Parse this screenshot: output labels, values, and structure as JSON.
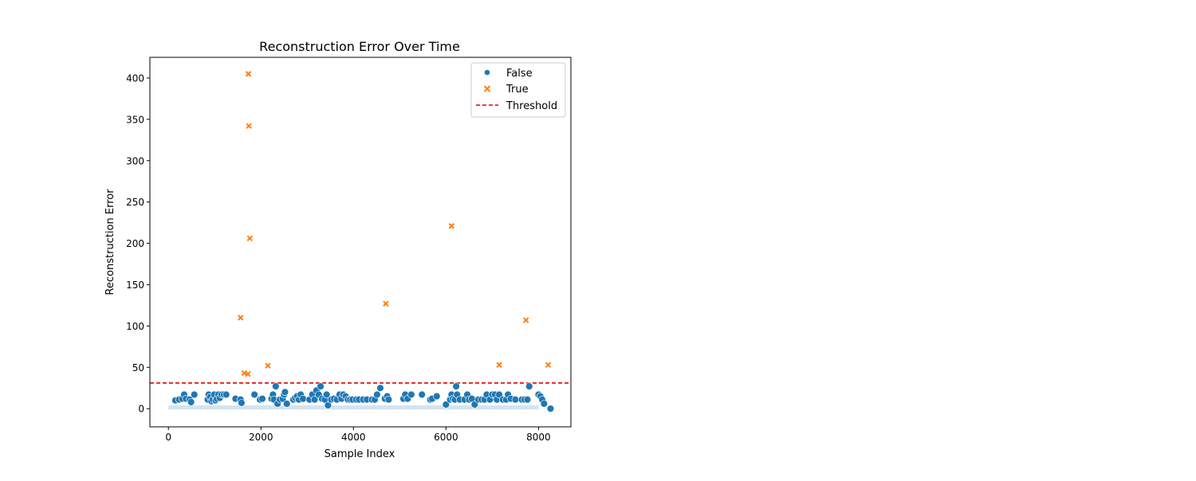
{
  "chart_data": {
    "type": "scatter",
    "title": "Reconstruction Error Over Time",
    "xlabel": "Sample Index",
    "ylabel": "Reconstruction Error",
    "xlim": [
      -400,
      8700
    ],
    "ylim": [
      -22,
      425
    ],
    "xticks": [
      0,
      2000,
      4000,
      6000,
      8000
    ],
    "yticks": [
      0,
      50,
      100,
      150,
      200,
      250,
      300,
      350,
      400
    ],
    "grid": false,
    "legend_position": "upper right",
    "threshold": {
      "name": "Threshold",
      "value": 31,
      "color": "#e00000"
    },
    "series": [
      {
        "name": "False",
        "marker": "circle",
        "color": "#1f77b4",
        "points": [
          [
            150,
            10
          ],
          [
            230,
            11
          ],
          [
            300,
            12
          ],
          [
            340,
            17
          ],
          [
            380,
            12
          ],
          [
            460,
            11
          ],
          [
            490,
            8
          ],
          [
            560,
            17
          ],
          [
            850,
            11
          ],
          [
            870,
            17
          ],
          [
            900,
            14
          ],
          [
            930,
            9
          ],
          [
            960,
            11
          ],
          [
            990,
            17
          ],
          [
            1020,
            10
          ],
          [
            1050,
            12
          ],
          [
            1080,
            17
          ],
          [
            1110,
            13
          ],
          [
            1150,
            17
          ],
          [
            1200,
            17
          ],
          [
            1250,
            17
          ],
          [
            1450,
            12
          ],
          [
            1560,
            11
          ],
          [
            1580,
            7
          ],
          [
            1860,
            17
          ],
          [
            1980,
            11
          ],
          [
            2030,
            12
          ],
          [
            2230,
            12
          ],
          [
            2260,
            17
          ],
          [
            2280,
            11
          ],
          [
            2320,
            27
          ],
          [
            2360,
            6
          ],
          [
            2410,
            11
          ],
          [
            2470,
            12
          ],
          [
            2500,
            17
          ],
          [
            2520,
            20
          ],
          [
            2560,
            6
          ],
          [
            2700,
            11
          ],
          [
            2740,
            13
          ],
          [
            2780,
            15
          ],
          [
            2820,
            11
          ],
          [
            2860,
            17
          ],
          [
            2910,
            12
          ],
          [
            3050,
            11
          ],
          [
            3110,
            17
          ],
          [
            3160,
            11
          ],
          [
            3200,
            22
          ],
          [
            3250,
            17
          ],
          [
            3290,
            27
          ],
          [
            3320,
            12
          ],
          [
            3380,
            11
          ],
          [
            3420,
            17
          ],
          [
            3450,
            4
          ],
          [
            3520,
            11
          ],
          [
            3580,
            12
          ],
          [
            3640,
            11
          ],
          [
            3700,
            17
          ],
          [
            3740,
            12
          ],
          [
            3780,
            17
          ],
          [
            3830,
            15
          ],
          [
            3880,
            11
          ],
          [
            3930,
            11
          ],
          [
            3980,
            11
          ],
          [
            4060,
            11
          ],
          [
            4120,
            11
          ],
          [
            4210,
            11
          ],
          [
            4290,
            11
          ],
          [
            4400,
            11
          ],
          [
            4460,
            11
          ],
          [
            4510,
            17
          ],
          [
            4580,
            25
          ],
          [
            4680,
            12
          ],
          [
            4730,
            15
          ],
          [
            4760,
            11
          ],
          [
            5080,
            12
          ],
          [
            5120,
            17
          ],
          [
            5170,
            12
          ],
          [
            5250,
            17
          ],
          [
            5480,
            17
          ],
          [
            5660,
            11
          ],
          [
            5700,
            12
          ],
          [
            5800,
            15
          ],
          [
            6000,
            5
          ],
          [
            6090,
            11
          ],
          [
            6120,
            17
          ],
          [
            6150,
            12
          ],
          [
            6190,
            11
          ],
          [
            6220,
            27
          ],
          [
            6240,
            17
          ],
          [
            6300,
            11
          ],
          [
            6400,
            11
          ],
          [
            6460,
            17
          ],
          [
            6500,
            11
          ],
          [
            6560,
            12
          ],
          [
            6620,
            5
          ],
          [
            6700,
            11
          ],
          [
            6770,
            11
          ],
          [
            6830,
            11
          ],
          [
            6880,
            17
          ],
          [
            6950,
            11
          ],
          [
            7000,
            17
          ],
          [
            7060,
            17
          ],
          [
            7100,
            11
          ],
          [
            7150,
            17
          ],
          [
            7230,
            11
          ],
          [
            7300,
            11
          ],
          [
            7340,
            17
          ],
          [
            7400,
            12
          ],
          [
            7500,
            11
          ],
          [
            7640,
            11
          ],
          [
            7700,
            11
          ],
          [
            7760,
            11
          ],
          [
            7800,
            27
          ],
          [
            8000,
            17
          ],
          [
            8040,
            15
          ],
          [
            8080,
            11
          ],
          [
            8120,
            6
          ],
          [
            8260,
            0
          ]
        ]
      },
      {
        "name": "True",
        "marker": "x",
        "color": "#ff7f0e",
        "points": [
          [
            1560,
            110
          ],
          [
            1640,
            43
          ],
          [
            1720,
            42
          ],
          [
            1730,
            405
          ],
          [
            1740,
            342
          ],
          [
            1760,
            206
          ],
          [
            2150,
            52
          ],
          [
            4700,
            127
          ],
          [
            6120,
            221
          ],
          [
            7150,
            53
          ],
          [
            7730,
            107
          ],
          [
            8210,
            53
          ]
        ]
      }
    ]
  }
}
